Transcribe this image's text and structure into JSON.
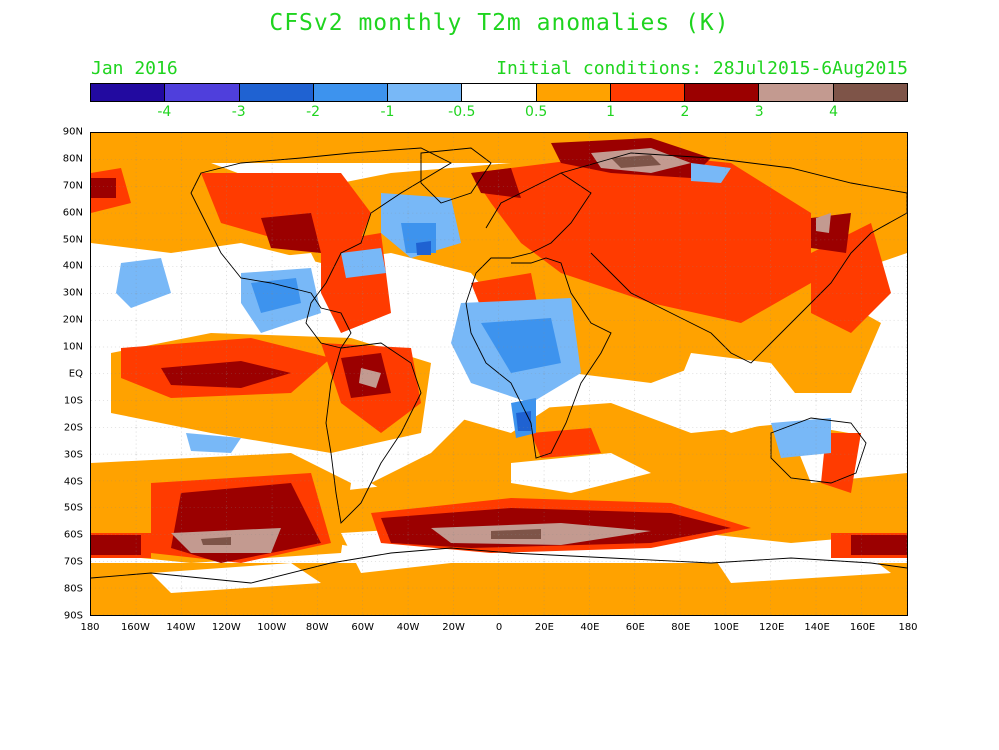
{
  "title": "CFSv2 monthly T2m anomalies (K)",
  "subtitle_left": "Jan 2016",
  "subtitle_right": "Initial conditions: 28Jul2015-6Aug2015",
  "colorbar": {
    "colors": [
      "#220aa0",
      "#4f3fdc",
      "#1f62d2",
      "#3d93ee",
      "#78b8f7",
      "#ffffff",
      "#ffa200",
      "#ff3b00",
      "#9b0000",
      "#c39a90",
      "#7e5448"
    ],
    "labels": [
      "-4",
      "-3",
      "-2",
      "-1",
      "-0.5",
      "0.5",
      "1",
      "2",
      "3",
      "4"
    ]
  },
  "lat_labels": [
    "90N",
    "80N",
    "70N",
    "60N",
    "50N",
    "40N",
    "30N",
    "20N",
    "10N",
    "EQ",
    "10S",
    "20S",
    "30S",
    "40S",
    "50S",
    "60S",
    "70S",
    "80S",
    "90S"
  ],
  "lon_labels": [
    "180",
    "160W",
    "140W",
    "120W",
    "100W",
    "80W",
    "60W",
    "40W",
    "20W",
    "0",
    "20E",
    "40E",
    "60E",
    "80E",
    "100E",
    "120E",
    "140E",
    "160E",
    "180"
  ]
}
